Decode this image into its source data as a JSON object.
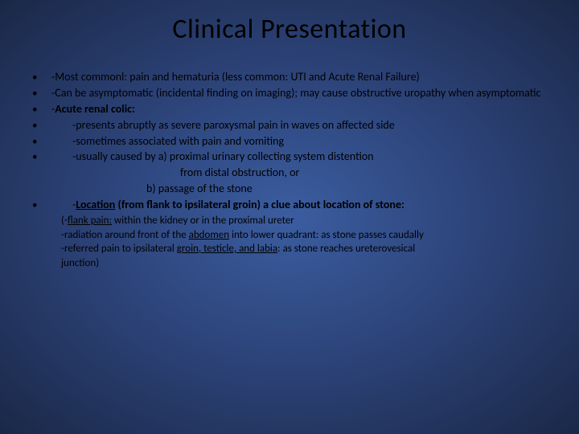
{
  "title": "Clinical Presentation",
  "bullets": {
    "b1": "-Most commonl: pain and hematuria (less common: UTI and Acute Renal Failure)",
    "b2": "-Can be asymptomatic (incidental finding on imaging); may cause obstructive uropathy when asymptomatic",
    "b3_pre": "-",
    "b3_bold": "Acute renal colic:",
    "b4": "-presents abruptly as severe paroxysmal pain in waves on affected side",
    "b5": "-sometimes associated with pain and vomiting",
    "b6": "-usually caused by a) proximal urinary collecting system distention",
    "b6_line2": "from distal obstruction, or",
    "b6_line3": "b) passage of the stone",
    "b7_pre": "-",
    "b7_u": "Location",
    "b7_post": " (from flank to ipsilateral groin) a clue about location of stone:"
  },
  "sub": {
    "s1_pre": "(-",
    "s1_u": "flank pain:",
    "s1_post": " within the kidney or in the proximal ureter",
    "s2_pre": " -radiation around front of the ",
    "s2_u": "abdomen",
    "s2_post": " into lower quadrant: as stone passes caudally",
    "s3_pre": " -referred pain to ipsilateral ",
    "s3_u": "groin, testicle, and labia",
    "s3_post": ": as stone reaches ureterovesical",
    "s4": "  junction)"
  }
}
